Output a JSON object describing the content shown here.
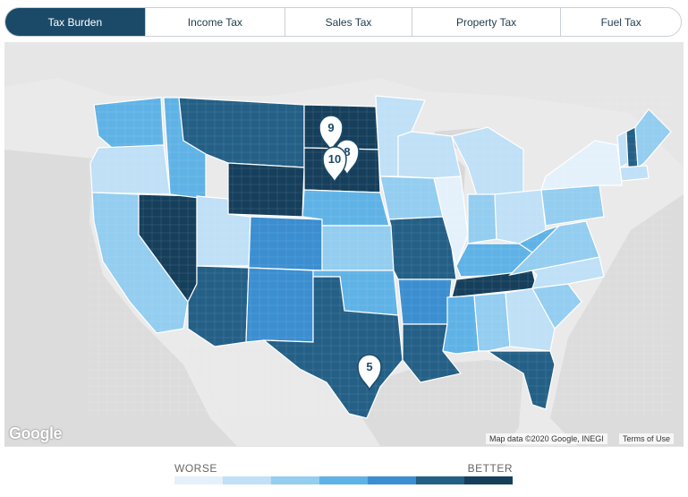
{
  "tabs": [
    {
      "label": "Tax Burden",
      "active": true
    },
    {
      "label": "Income Tax",
      "active": false
    },
    {
      "label": "Sales Tax",
      "active": false
    },
    {
      "label": "Property Tax",
      "active": false
    },
    {
      "label": "Fuel Tax",
      "active": false
    }
  ],
  "map": {
    "attribution": "Map data ©2020 Google, INEGI",
    "terms": "Terms of Use",
    "logo_text": "Google",
    "markers": [
      {
        "label": "9",
        "location": "North Dakota"
      },
      {
        "label": "8",
        "location": "North Dakota"
      },
      {
        "label": "10",
        "location": "South Dakota"
      },
      {
        "label": "5",
        "location": "Texas"
      }
    ],
    "states": [
      {
        "name": "Washington",
        "level": 4
      },
      {
        "name": "Oregon",
        "level": 2
      },
      {
        "name": "California",
        "level": 3
      },
      {
        "name": "Nevada",
        "level": 7
      },
      {
        "name": "Idaho",
        "level": 4
      },
      {
        "name": "Montana",
        "level": 6
      },
      {
        "name": "Wyoming",
        "level": 7
      },
      {
        "name": "Utah",
        "level": 2
      },
      {
        "name": "Colorado",
        "level": 5
      },
      {
        "name": "Arizona",
        "level": 6
      },
      {
        "name": "New Mexico",
        "level": 5
      },
      {
        "name": "North Dakota",
        "level": 7
      },
      {
        "name": "South Dakota",
        "level": 7
      },
      {
        "name": "Nebraska",
        "level": 4
      },
      {
        "name": "Kansas",
        "level": 3
      },
      {
        "name": "Oklahoma",
        "level": 4
      },
      {
        "name": "Texas",
        "level": 6
      },
      {
        "name": "Minnesota",
        "level": 2
      },
      {
        "name": "Iowa",
        "level": 3
      },
      {
        "name": "Missouri",
        "level": 6
      },
      {
        "name": "Arkansas",
        "level": 5
      },
      {
        "name": "Louisiana",
        "level": 6
      },
      {
        "name": "Wisconsin",
        "level": 2
      },
      {
        "name": "Illinois",
        "level": 1
      },
      {
        "name": "Michigan",
        "level": 2
      },
      {
        "name": "Indiana",
        "level": 3
      },
      {
        "name": "Ohio",
        "level": 2
      },
      {
        "name": "Kentucky",
        "level": 4
      },
      {
        "name": "Tennessee",
        "level": 7
      },
      {
        "name": "Mississippi",
        "level": 4
      },
      {
        "name": "Alabama",
        "level": 3
      },
      {
        "name": "Georgia",
        "level": 2
      },
      {
        "name": "Florida",
        "level": 6
      },
      {
        "name": "South Carolina",
        "level": 3
      },
      {
        "name": "North Carolina",
        "level": 2
      },
      {
        "name": "Virginia",
        "level": 3
      },
      {
        "name": "West Virginia",
        "level": 4
      },
      {
        "name": "Pennsylvania",
        "level": 3
      },
      {
        "name": "New York",
        "level": 1
      },
      {
        "name": "Vermont",
        "level": 2
      },
      {
        "name": "New Hampshire",
        "level": 6
      },
      {
        "name": "Maine",
        "level": 3
      },
      {
        "name": "Massachusetts",
        "level": 2
      }
    ]
  },
  "legend": {
    "worse_label": "WORSE",
    "better_label": "BETTER",
    "colors": [
      "#e4f1fb",
      "#bfe0f6",
      "#93cdf0",
      "#5fb2e6",
      "#3b8ed0",
      "#245f86",
      "#163f5c"
    ]
  }
}
